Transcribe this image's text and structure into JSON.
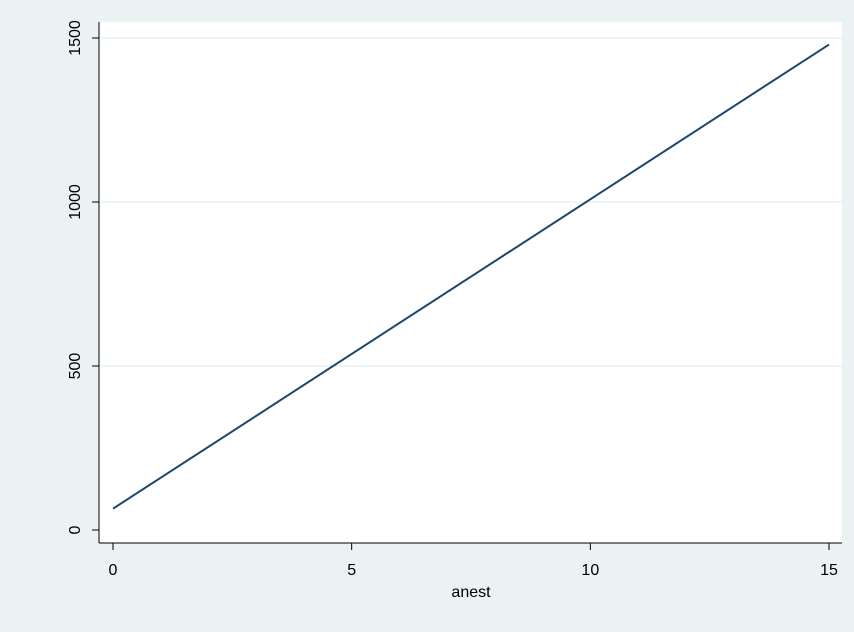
{
  "chart_data": {
    "type": "line",
    "title": "",
    "xlabel": "anest",
    "ylabel": "",
    "x_ticks": [
      "0",
      "5",
      "10",
      "15"
    ],
    "y_ticks": [
      "0",
      "500",
      "1000",
      "1500"
    ],
    "xlim": [
      0,
      15
    ],
    "ylim": [
      0,
      1500
    ],
    "grid": "horizontal",
    "series": [
      {
        "x": [
          0,
          15
        ],
        "y": [
          65,
          1480
        ],
        "color": "#1a476f"
      }
    ]
  },
  "colors": {
    "background": "#eaf2f3",
    "plot_area": "#ffffff",
    "gridline": "#eaf2f3",
    "axis": "#000000"
  }
}
